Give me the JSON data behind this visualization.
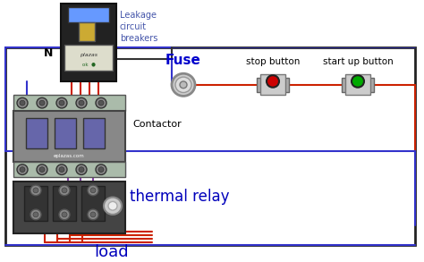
{
  "bg_color": "#ffffff",
  "labels": {
    "leakage": "Leakage\ncircuit\nbreakers",
    "fuse": "Fuse",
    "stop": "stop button",
    "start": "start up button",
    "contactor": "Contactor",
    "thermal": "thermal relay",
    "load": "load",
    "N": "N"
  },
  "label_colors": {
    "fuse": "#0000cc",
    "stop": "#000000",
    "start": "#000000",
    "contactor": "#000000",
    "thermal": "#0000bb",
    "load": "#0000bb",
    "leakage": "#4455aa",
    "N": "#000000"
  },
  "wire_blue": "#3333cc",
  "wire_red": "#cc2200",
  "wire_purple": "#8844aa",
  "component_gray": "#999999",
  "breaker_dark": "#222222",
  "stop_button_color": "#cc0000",
  "start_button_color": "#00aa00",
  "contactor_green": "#aabbaa",
  "contactor_body": "#888888",
  "contactor_blue": "#6666aa",
  "thermal_dark": "#333333",
  "thermal_orange": "#cc6622"
}
